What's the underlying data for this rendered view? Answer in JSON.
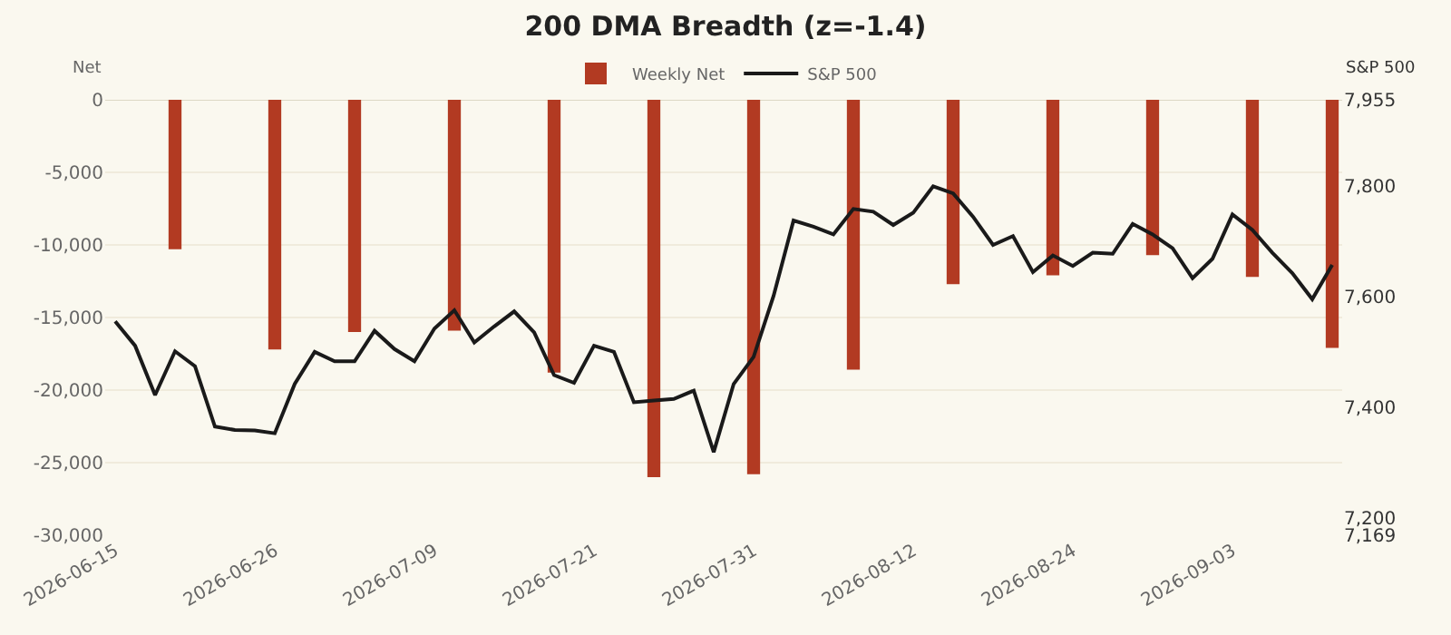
{
  "chart_data": {
    "type": "bar",
    "title": "200 DMA Breadth (z=-1.4)",
    "ylabel": "Net",
    "y2label": "S&P 500",
    "categories": [
      "2026-06-15",
      null,
      null,
      null,
      null,
      null,
      null,
      null,
      "2026-06-26",
      null,
      null,
      null,
      null,
      null,
      null,
      null,
      "2026-07-09",
      null,
      null,
      null,
      null,
      null,
      null,
      null,
      "2026-07-21",
      null,
      null,
      null,
      null,
      null,
      null,
      null,
      "2026-07-31",
      null,
      null,
      null,
      null,
      null,
      null,
      null,
      "2026-08-12",
      null,
      null,
      null,
      null,
      null,
      null,
      null,
      "2026-08-24",
      null,
      null,
      null,
      null,
      null,
      null,
      null,
      "2026-09-03",
      null,
      null,
      null,
      null,
      null
    ],
    "series": [
      {
        "name": "Weekly Net",
        "color": "#b23a22",
        "values": [
          null,
          null,
          null,
          -10300,
          null,
          null,
          null,
          null,
          -17200,
          null,
          null,
          null,
          -16000,
          null,
          null,
          null,
          null,
          -15900,
          null,
          null,
          null,
          null,
          -18800,
          null,
          null,
          null,
          null,
          -26000,
          null,
          null,
          null,
          null,
          -25800,
          null,
          null,
          null,
          null,
          -18600,
          null,
          null,
          null,
          null,
          -12700,
          null,
          null,
          null,
          null,
          -12100,
          null,
          null,
          null,
          null,
          -10700,
          null,
          null,
          null,
          null,
          -12200,
          null,
          null,
          null,
          -17100
        ]
      },
      {
        "name": "S&P 500",
        "type": "line",
        "axis": "y2",
        "color": "#1a1a1a",
        "values": [
          7555,
          7511,
          7422,
          7501,
          7474,
          7365,
          7359,
          7358,
          7353,
          7442,
          7500,
          7483,
          7483,
          7538,
          7505,
          7483,
          7542,
          7575,
          7517,
          7546,
          7573,
          7535,
          7458,
          7444,
          7511,
          7500,
          7409,
          7412,
          7415,
          7430,
          7319,
          7442,
          7491,
          7601,
          7737,
          7726,
          7712,
          7758,
          7753,
          7729,
          7751,
          7799,
          7786,
          7744,
          7693,
          7709,
          7644,
          7674,
          7655,
          7679,
          7677,
          7731,
          7712,
          7687,
          7633,
          7668,
          7748,
          7720,
          7679,
          7642,
          7595,
          7657
        ]
      }
    ],
    "ylim": [
      -30000,
      0
    ],
    "yticks": [
      0,
      {
        "value": -5000,
        "label": "-5,000"
      },
      {
        "value": -10000,
        "label": "-10,000"
      },
      {
        "value": -15000,
        "label": "-15,000"
      },
      {
        "value": -20000,
        "label": "-20,000"
      },
      {
        "value": -25000,
        "label": "-25,000"
      },
      {
        "value": -30000,
        "label": "-30,000"
      }
    ],
    "y2lim": [
      7169,
      7955
    ],
    "y2ticks": [
      {
        "value": 7955,
        "label": "7,955"
      },
      {
        "value": 7800,
        "label": "7,800"
      },
      {
        "value": 7600,
        "label": "7,600"
      },
      {
        "value": 7400,
        "label": "7,400"
      },
      {
        "value": 7200,
        "label": "7,200"
      },
      {
        "value": 7169,
        "label": "7,169"
      }
    ],
    "grid": "y",
    "legend": "top"
  }
}
